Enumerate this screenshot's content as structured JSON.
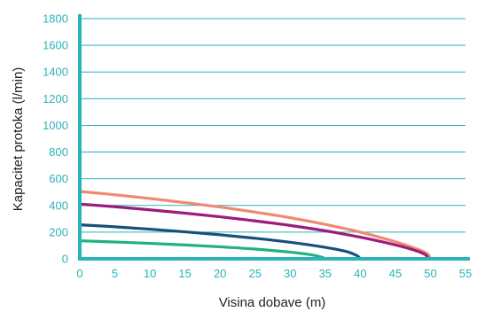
{
  "chart_data": {
    "type": "line",
    "title": "",
    "xlabel": "Visina dobave (m)",
    "ylabel": "Kapacitet protoka (l/min)",
    "xlim": [
      0,
      55
    ],
    "ylim": [
      0,
      1800
    ],
    "x_ticks": [
      "0",
      "5",
      "10",
      "15",
      "20",
      "25",
      "30",
      "35",
      "40",
      "45",
      "50",
      "55"
    ],
    "y_ticks": [
      "0",
      "200",
      "400",
      "600",
      "800",
      "1000",
      "1200",
      "1400",
      "1600",
      "1800"
    ],
    "grid": "horizontal",
    "legend": "none",
    "colors": {
      "axis": "#2bb3b8",
      "grid": "#2bb3b8",
      "tick_text": "#2bb3b8",
      "label_text": "#222222"
    },
    "series": [
      {
        "color": "#ee8a72",
        "x": [
          0,
          5,
          10,
          15,
          20,
          25,
          30,
          35,
          40,
          45,
          48,
          49.5,
          50
        ],
        "y": [
          505,
          480,
          452,
          421,
          388,
          350,
          308,
          258,
          200,
          128,
          75,
          40,
          0
        ]
      },
      {
        "color": "#9b1c7d",
        "x": [
          0,
          5,
          10,
          15,
          20,
          25,
          30,
          35,
          40,
          45,
          48,
          49.3,
          49.7
        ],
        "y": [
          410,
          390,
          367,
          342,
          315,
          284,
          250,
          210,
          162,
          104,
          60,
          30,
          0
        ]
      },
      {
        "color": "#17507a",
        "x": [
          0,
          5,
          10,
          15,
          20,
          25,
          30,
          35,
          38,
          39.5,
          40
        ],
        "y": [
          255,
          240,
          222,
          202,
          180,
          154,
          124,
          86,
          55,
          25,
          0
        ]
      },
      {
        "color": "#21b07f",
        "x": [
          0,
          5,
          10,
          15,
          20,
          25,
          30,
          33,
          34.5,
          35
        ],
        "y": [
          135,
          126,
          116,
          104,
          90,
          73,
          50,
          30,
          12,
          0
        ]
      }
    ]
  }
}
